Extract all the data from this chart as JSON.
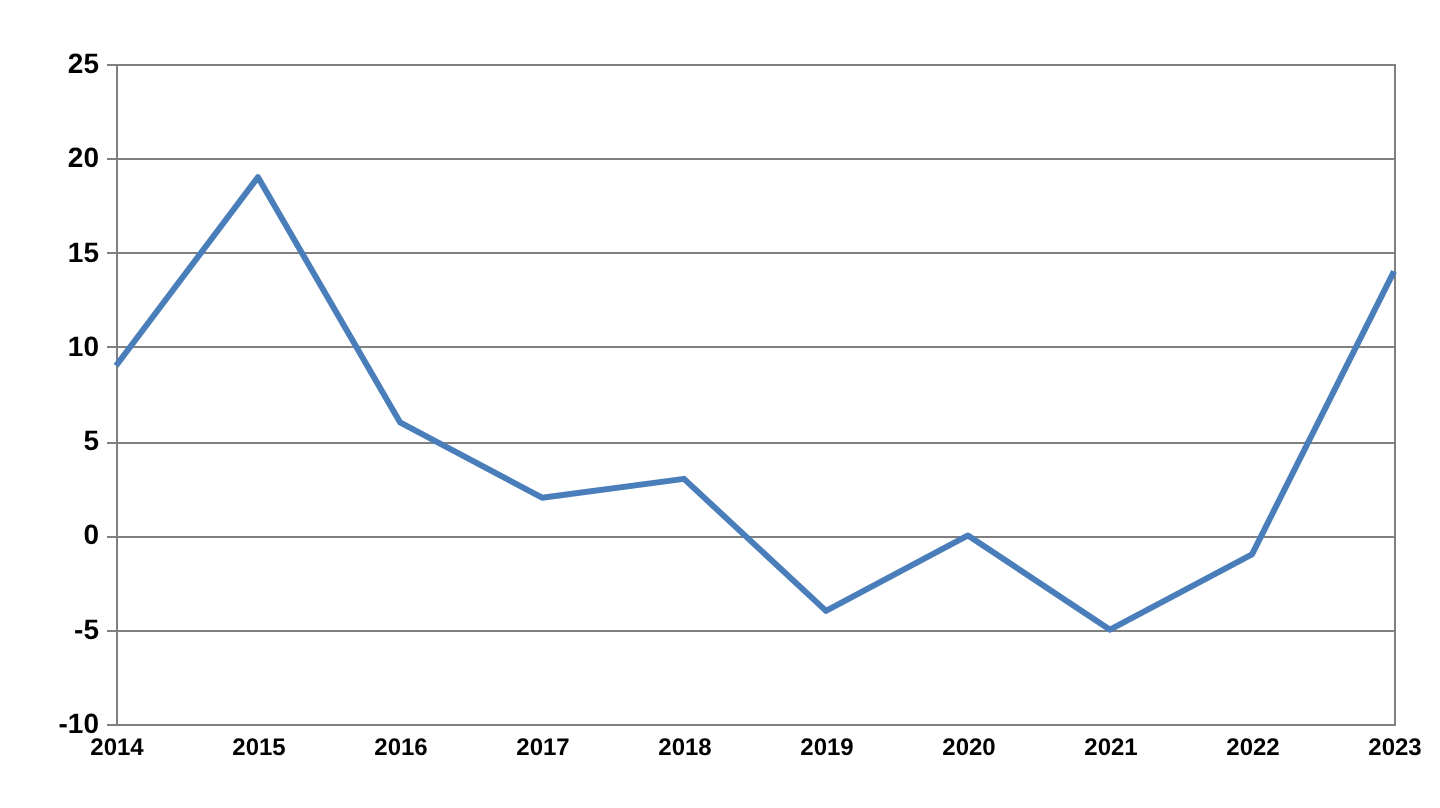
{
  "chart_data": {
    "type": "line",
    "x": [
      2014,
      2015,
      2016,
      2017,
      2018,
      2019,
      2020,
      2021,
      2022,
      2023
    ],
    "series": [
      {
        "color": "#4a7ebb",
        "values": [
          9,
          19,
          6,
          2,
          3,
          -4,
          0,
          -5,
          -1,
          14
        ]
      }
    ],
    "xlim": [
      2014,
      2023
    ],
    "xticks": [
      2014,
      2015,
      2016,
      2017,
      2018,
      2019,
      2020,
      2021,
      2022,
      2023
    ],
    "ylim": [
      -10,
      25
    ],
    "yticks": [
      -10,
      -5,
      0,
      5,
      10,
      15,
      20,
      25
    ],
    "grid": "y",
    "marker": "none",
    "line_style": "solid"
  }
}
